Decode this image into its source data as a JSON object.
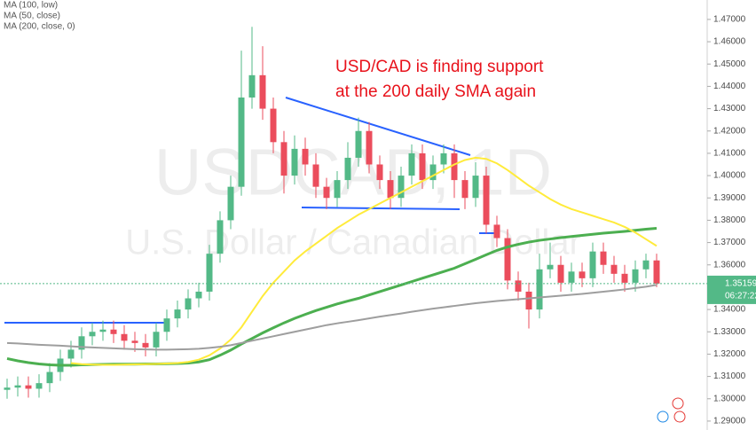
{
  "chart_data": {
    "type": "candlestick",
    "watermark": {
      "symbol": "USDCAD, 1D",
      "description": "U.S. Dollar / Canadian Dollar"
    },
    "annotation": [
      "USD/CAD is finding support",
      "at the 200 daily SMA again"
    ],
    "up_color": "#53b987",
    "down_color": "#eb4d5c",
    "candles": {
      "open": [
        1.304,
        1.305,
        1.306,
        1.3045,
        1.307,
        1.312,
        1.318,
        1.322,
        1.328,
        1.33,
        1.331,
        1.329,
        1.326,
        1.325,
        1.323,
        1.33,
        1.336,
        1.34,
        1.345,
        1.348,
        1.365,
        1.38,
        1.395,
        1.435,
        1.445,
        1.43,
        1.415,
        1.4,
        1.412,
        1.405,
        1.395,
        1.39,
        1.398,
        1.408,
        1.42,
        1.405,
        1.398,
        1.39,
        1.4,
        1.41,
        1.398,
        1.405,
        1.41,
        1.398,
        1.39,
        1.4,
        1.378,
        1.372,
        1.353,
        1.348,
        1.34,
        1.358,
        1.36,
        1.352,
        1.357,
        1.354,
        1.366,
        1.36,
        1.356,
        1.352,
        1.358,
        1.362
      ],
      "high": [
        1.309,
        1.31,
        1.31,
        1.311,
        1.316,
        1.322,
        1.326,
        1.332,
        1.334,
        1.335,
        1.335,
        1.333,
        1.33,
        1.329,
        1.334,
        1.34,
        1.344,
        1.349,
        1.352,
        1.369,
        1.384,
        1.4,
        1.456,
        1.4667,
        1.458,
        1.435,
        1.42,
        1.418,
        1.417,
        1.41,
        1.399,
        1.402,
        1.415,
        1.426,
        1.424,
        1.409,
        1.402,
        1.404,
        1.414,
        1.414,
        1.409,
        1.414,
        1.414,
        1.402,
        1.406,
        1.404,
        1.382,
        1.376,
        1.357,
        1.352,
        1.365,
        1.37,
        1.364,
        1.361,
        1.361,
        1.37,
        1.37,
        1.364,
        1.36,
        1.362,
        1.365,
        1.365
      ],
      "low": [
        1.3,
        1.301,
        1.3005,
        1.3005,
        1.303,
        1.308,
        1.314,
        1.318,
        1.324,
        1.326,
        1.325,
        1.322,
        1.321,
        1.319,
        1.319,
        1.326,
        1.332,
        1.336,
        1.341,
        1.344,
        1.361,
        1.376,
        1.391,
        1.43,
        1.425,
        1.41,
        1.392,
        1.396,
        1.4,
        1.39,
        1.385,
        1.386,
        1.394,
        1.404,
        1.401,
        1.394,
        1.385,
        1.386,
        1.396,
        1.394,
        1.394,
        1.401,
        1.39,
        1.385,
        1.386,
        1.374,
        1.368,
        1.349,
        1.344,
        1.3315,
        1.336,
        1.354,
        1.348,
        1.348,
        1.35,
        1.35,
        1.356,
        1.352,
        1.348,
        1.348,
        1.354,
        1.35
      ],
      "close": [
        1.305,
        1.306,
        1.3045,
        1.307,
        1.312,
        1.318,
        1.322,
        1.328,
        1.33,
        1.331,
        1.329,
        1.326,
        1.325,
        1.323,
        1.33,
        1.336,
        1.34,
        1.345,
        1.348,
        1.365,
        1.38,
        1.395,
        1.435,
        1.445,
        1.43,
        1.415,
        1.4,
        1.412,
        1.405,
        1.395,
        1.39,
        1.398,
        1.408,
        1.42,
        1.405,
        1.398,
        1.39,
        1.4,
        1.41,
        1.398,
        1.405,
        1.41,
        1.398,
        1.39,
        1.4,
        1.378,
        1.372,
        1.353,
        1.348,
        1.34,
        1.358,
        1.36,
        1.352,
        1.357,
        1.354,
        1.366,
        1.36,
        1.356,
        1.352,
        1.358,
        1.362,
        1.3516
      ]
    },
    "overlays": [
      {
        "name": "MA (100, low)",
        "color": "#4caf50",
        "width": 3,
        "values": [
          1.318,
          1.317,
          1.3162,
          1.3156,
          1.3152,
          1.315,
          1.315,
          1.3152,
          1.3153,
          1.3154,
          1.3155,
          1.3155,
          1.3155,
          1.3156,
          1.3156,
          1.3157,
          1.3158,
          1.316,
          1.3165,
          1.3175,
          1.3195,
          1.3218,
          1.3245,
          1.327,
          1.3295,
          1.3318,
          1.334,
          1.336,
          1.3378,
          1.3395,
          1.341,
          1.3425,
          1.3438,
          1.345,
          1.3465,
          1.348,
          1.3495,
          1.351,
          1.3525,
          1.354,
          1.3555,
          1.357,
          1.3585,
          1.3605,
          1.3625,
          1.3645,
          1.3665,
          1.368,
          1.3692,
          1.3702,
          1.371,
          1.3716,
          1.3722,
          1.3727,
          1.3732,
          1.3737,
          1.3742,
          1.3746,
          1.375,
          1.3755,
          1.376,
          1.3764
        ]
      },
      {
        "name": "MA (50, close)",
        "color": "#ffeb3b",
        "width": 2,
        "values": [
          null,
          null,
          null,
          null,
          null,
          null,
          1.316,
          1.3155,
          1.3153,
          1.3152,
          1.3152,
          1.3153,
          1.3154,
          1.3155,
          1.3156,
          1.3158,
          1.316,
          1.3165,
          1.3175,
          1.3195,
          1.3225,
          1.3265,
          1.332,
          1.339,
          1.346,
          1.352,
          1.357,
          1.362,
          1.366,
          1.3695,
          1.373,
          1.3765,
          1.3795,
          1.3825,
          1.385,
          1.3875,
          1.39,
          1.3925,
          1.395,
          1.3975,
          1.4,
          1.4025,
          1.405,
          1.407,
          1.408,
          1.4075,
          1.4055,
          1.4025,
          1.399,
          1.3955,
          1.3925,
          1.3895,
          1.387,
          1.385,
          1.3835,
          1.382,
          1.3805,
          1.379,
          1.377,
          1.3745,
          1.3715,
          1.3685
        ]
      },
      {
        "name": "MA (200, close, 0)",
        "color": "#9e9e9e",
        "width": 2,
        "values": [
          1.325,
          1.3248,
          1.3245,
          1.3242,
          1.324,
          1.3238,
          1.3235,
          1.3232,
          1.323,
          1.3228,
          1.3226,
          1.3224,
          1.3222,
          1.3221,
          1.322,
          1.322,
          1.3221,
          1.3222,
          1.3224,
          1.3228,
          1.3233,
          1.324,
          1.325,
          1.326,
          1.327,
          1.328,
          1.329,
          1.33,
          1.331,
          1.332,
          1.333,
          1.3338,
          1.3345,
          1.3352,
          1.336,
          1.3368,
          1.3375,
          1.3382,
          1.339,
          1.3397,
          1.3404,
          1.341,
          1.3416,
          1.3422,
          1.3428,
          1.3433,
          1.3438,
          1.3442,
          1.3446,
          1.345,
          1.3454,
          1.3458,
          1.3462,
          1.3466,
          1.347,
          1.3475,
          1.348,
          1.3485,
          1.349,
          1.3496,
          1.3502,
          1.351
        ]
      }
    ],
    "last_price": 1.35159,
    "countdown": "06:27:22",
    "ylim": [
      1.286,
      1.4787
    ],
    "yticks": [
      {
        "value": 1.29,
        "label": "1.29000"
      },
      {
        "value": 1.3,
        "label": "1.30000"
      },
      {
        "value": 1.31,
        "label": "1.31000"
      },
      {
        "value": 1.32,
        "label": "1.32000"
      },
      {
        "value": 1.33,
        "label": "1.33000"
      },
      {
        "value": 1.34,
        "label": "1.34000"
      },
      {
        "value": 1.35,
        "label": "1.35000"
      },
      {
        "value": 1.36,
        "label": "1.36000"
      },
      {
        "value": 1.37,
        "label": "1.37000"
      },
      {
        "value": 1.38,
        "label": "1.38000"
      },
      {
        "value": 1.39,
        "label": "1.39000"
      },
      {
        "value": 1.4,
        "label": "1.40000"
      },
      {
        "value": 1.41,
        "label": "1.41000"
      },
      {
        "value": 1.42,
        "label": "1.42000"
      },
      {
        "value": 1.43,
        "label": "1.43000"
      },
      {
        "value": 1.44,
        "label": "1.44000"
      },
      {
        "value": 1.45,
        "label": "1.45000"
      },
      {
        "value": 1.46,
        "label": "1.46000"
      },
      {
        "value": 1.47,
        "label": "1.47000"
      }
    ],
    "grid": false
  }
}
